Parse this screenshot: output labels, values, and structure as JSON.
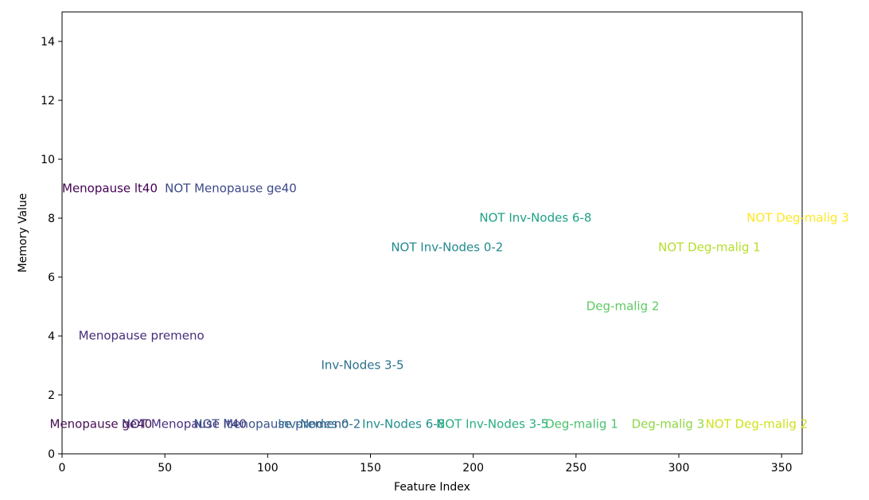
{
  "chart_data": {
    "type": "scatter",
    "xlabel": "Feature Index",
    "ylabel": "Memory Value",
    "xlim": [
      0,
      360
    ],
    "ylim": [
      0,
      15
    ],
    "xticks": [
      0,
      50,
      100,
      150,
      200,
      250,
      300,
      350
    ],
    "yticks": [
      0,
      2,
      4,
      6,
      8,
      10,
      12,
      14
    ],
    "grid": false,
    "colors": [
      "#440154",
      "#482878",
      "#3e4989",
      "#31688e",
      "#26828e",
      "#1f9e89",
      "#35b779",
      "#6ece58",
      "#b5de2b",
      "#fde725"
    ],
    "points": [
      {
        "x": 0,
        "y": 9,
        "label": "Menopause lt40",
        "color": "#440154"
      },
      {
        "x": 50,
        "y": 9,
        "label": "NOT Menopause ge40",
        "color": "#3e4989"
      },
      {
        "x": 8,
        "y": 4,
        "label": "Menopause premeno",
        "color": "#472d7b"
      },
      {
        "x": 160,
        "y": 7,
        "label": "NOT Inv-Nodes 0-2",
        "color": "#23898e"
      },
      {
        "x": 203,
        "y": 8,
        "label": "NOT Inv-Nodes 6-8",
        "color": "#1fa187"
      },
      {
        "x": 126,
        "y": 3,
        "label": "Inv-Nodes 3-5",
        "color": "#2d708e"
      },
      {
        "x": 255,
        "y": 5,
        "label": "Deg-malig 2",
        "color": "#5ec962"
      },
      {
        "x": 290,
        "y": 7,
        "label": "NOT Deg-malig 1",
        "color": "#b5de2b"
      },
      {
        "x": 333,
        "y": 8,
        "label": "NOT Deg-malig 3",
        "color": "#fde725"
      },
      {
        "x": -6,
        "y": 1,
        "label": "Menopause ge40",
        "color": "#450d54"
      },
      {
        "x": 29,
        "y": 1,
        "label": "NOT Menopause lt40",
        "color": "#46307e"
      },
      {
        "x": 64,
        "y": 1,
        "label": "NOT Menopause premeno",
        "color": "#3b528b"
      },
      {
        "x": 105,
        "y": 1,
        "label": "Inv-Nodes 0-2",
        "color": "#2c728e"
      },
      {
        "x": 146,
        "y": 1,
        "label": "Inv-Nodes 6-8",
        "color": "#21908d"
      },
      {
        "x": 182,
        "y": 1,
        "label": "NOT Inv-Nodes 3-5",
        "color": "#27ad81"
      },
      {
        "x": 235,
        "y": 1,
        "label": "Deg-malig 1",
        "color": "#4ac16d"
      },
      {
        "x": 277,
        "y": 1,
        "label": "Deg-malig 3",
        "color": "#8fd744"
      },
      {
        "x": 313,
        "y": 1,
        "label": "NOT Deg-malig 2",
        "color": "#d0e11c"
      }
    ]
  }
}
